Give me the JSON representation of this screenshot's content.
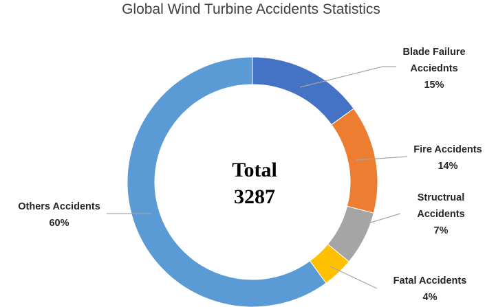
{
  "chart_data": {
    "type": "pie",
    "title": "Global Wind Turbine Accidents Statistics",
    "center_label": [
      "Total",
      "3287"
    ],
    "slices": [
      {
        "label_lines": [
          "Blade Failure",
          "Acciednts"
        ],
        "percent_label": "15%",
        "value": 15,
        "color": "#4472c4"
      },
      {
        "label_lines": [
          "Fire Accidents"
        ],
        "percent_label": "14%",
        "value": 14,
        "color": "#ed7d31"
      },
      {
        "label_lines": [
          "Structrual",
          "Accidents"
        ],
        "percent_label": "7%",
        "value": 7,
        "color": "#a5a5a5"
      },
      {
        "label_lines": [
          "Fatal Accidents"
        ],
        "percent_label": "4%",
        "value": 4,
        "color": "#ffc000"
      },
      {
        "label_lines": [
          "Others Accidents"
        ],
        "percent_label": "60%",
        "value": 60,
        "color": "#5b9bd5"
      }
    ]
  }
}
